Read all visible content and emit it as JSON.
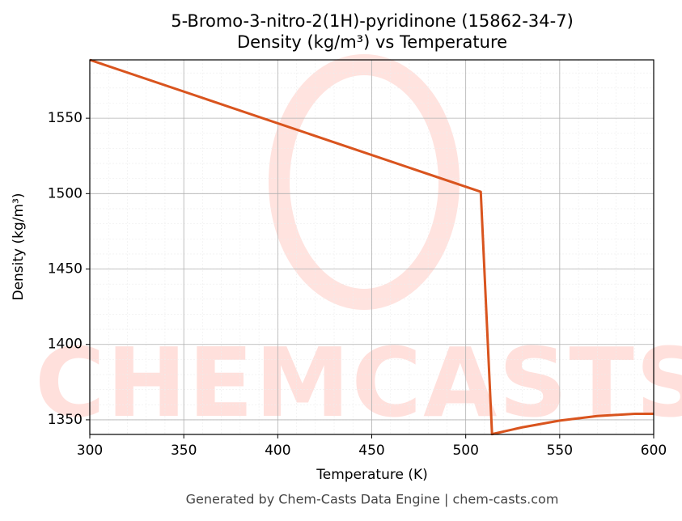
{
  "chart_data": {
    "type": "line",
    "title": "5-Bromo-3-nitro-2(1H)-pyridinone (15862-34-7)",
    "subtitle": "Density (kg/m³) vs Temperature",
    "x_label": "Temperature (K)",
    "y_label": "Density (kg/m³)",
    "footer": "Generated by Chem-Casts Data Engine | chem-casts.com",
    "watermark": "CHEMCASTS",
    "x": [
      300,
      508,
      514,
      530,
      550,
      570,
      590,
      600
    ],
    "series": [
      {
        "name": "Density",
        "color": "#d9541e",
        "values": [
          1588.7,
          1501.2,
          1340.5,
          1345,
          1349.5,
          1352.5,
          1354,
          1354
        ]
      }
    ],
    "xlim": [
      300,
      600
    ],
    "xticks": [
      300,
      350,
      400,
      450,
      500,
      550,
      600
    ],
    "ylim": [
      1340.3,
      1588.7
    ],
    "yticks": [
      1350,
      1400,
      1450,
      1500,
      1550
    ],
    "grid": true
  }
}
